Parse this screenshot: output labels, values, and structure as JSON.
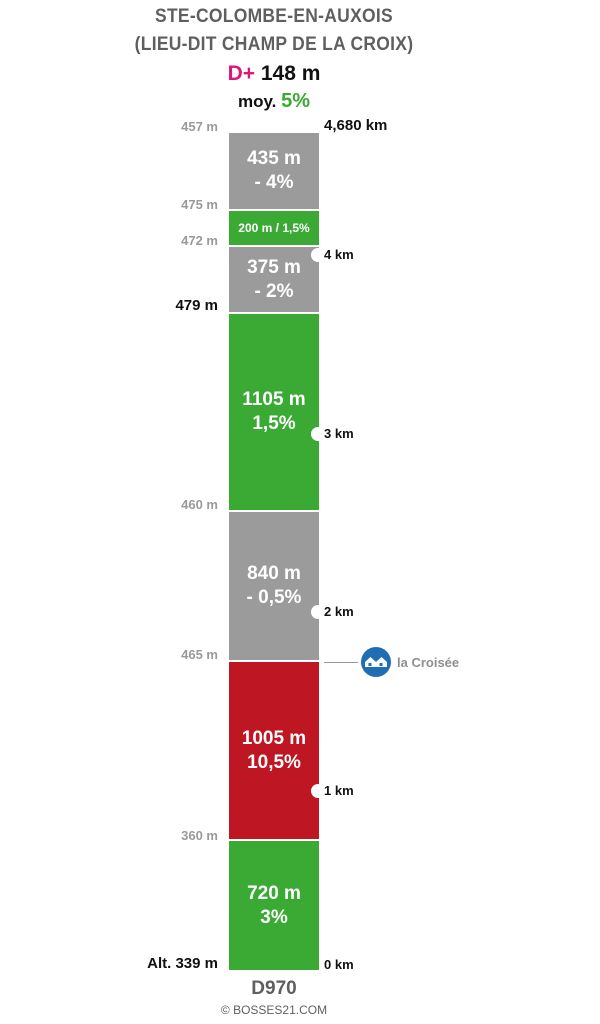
{
  "title": {
    "line1": "STE-COLOMBE-EN-AUXOIS",
    "line2": "(LIEU-DIT CHAMP DE LA CROIX)"
  },
  "summary": {
    "dplus_label": "D+",
    "dplus_value": "148 m",
    "avg_label": "moy.",
    "avg_value": "5%"
  },
  "colors": {
    "gray": "#9b9b9b",
    "green": "#3aaa35",
    "red": "#be1622",
    "dplus": "#e0157a",
    "poi": "#1f6eb3"
  },
  "segments": [
    {
      "length": "435 m",
      "grade": "- 4%",
      "color": "gray"
    },
    {
      "length": "200 m / 1,5%",
      "grade": "",
      "color": "green"
    },
    {
      "length": "375 m",
      "grade": "- 2%",
      "color": "gray"
    },
    {
      "length": "1105 m",
      "grade": "1,5%",
      "color": "green"
    },
    {
      "length": "840 m",
      "grade": "- 0,5%",
      "color": "gray"
    },
    {
      "length": "1005 m",
      "grade": "10,5%",
      "color": "red"
    },
    {
      "length": "720 m",
      "grade": "3%",
      "color": "green"
    }
  ],
  "altitudes": [
    "457 m",
    "475 m",
    "472 m",
    "479 m",
    "460 m",
    "465 m",
    "360 m",
    "Alt. 339 m"
  ],
  "km_markers": [
    "4,680 km",
    "4 km",
    "3 km",
    "2 km",
    "1 km",
    "0 km"
  ],
  "poi": {
    "label": "la Croisée",
    "icon": "houses-icon"
  },
  "road": "D970",
  "copyright": "© BOSSES21.COM"
}
